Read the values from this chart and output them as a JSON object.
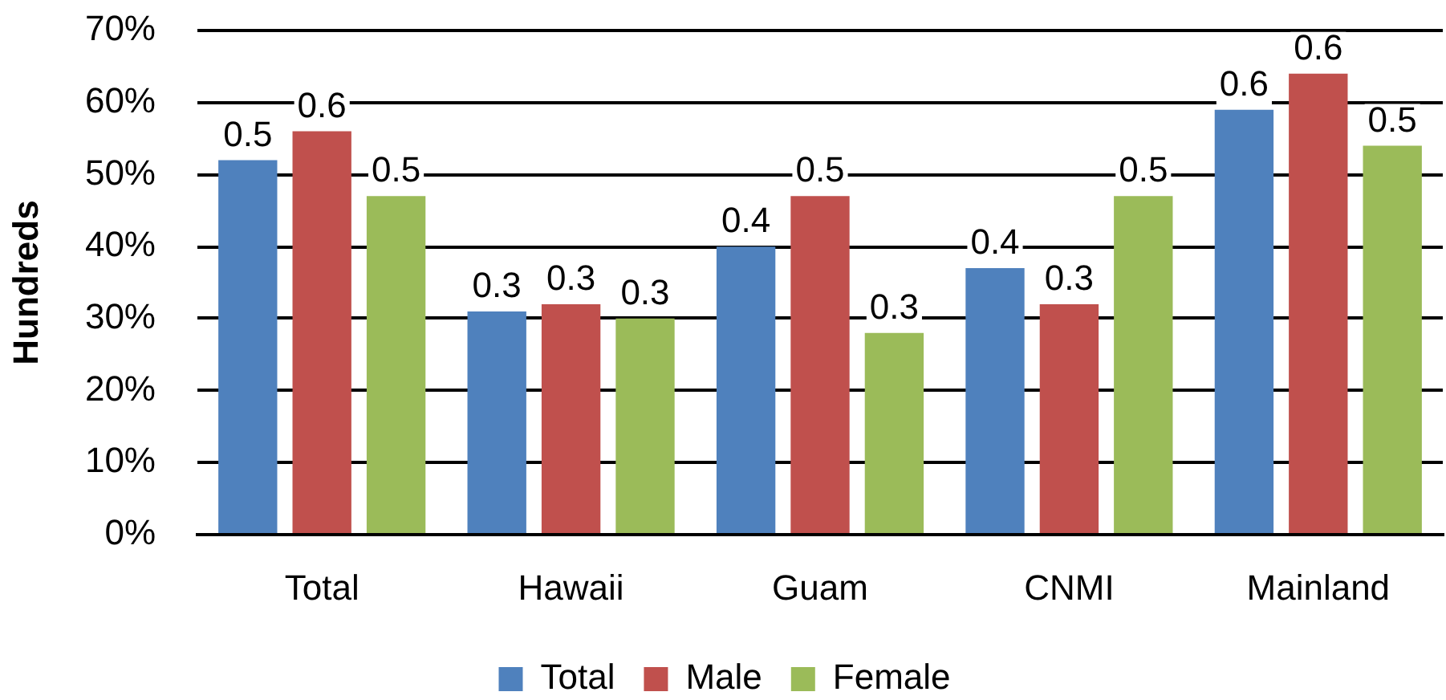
{
  "chart_data": {
    "type": "bar",
    "ylabel": "Hundreds",
    "categories": [
      "Total",
      "Hawaii",
      "Guam",
      "CNMI",
      "Mainland"
    ],
    "series": [
      {
        "name": "Total",
        "color": "#4f81bd",
        "values": [
          0.52,
          0.31,
          0.4,
          0.37,
          0.59
        ],
        "value_labels": [
          "0.5",
          "0.3",
          "0.4",
          "0.4",
          "0.6"
        ]
      },
      {
        "name": "Male",
        "color": "#c0504d",
        "values": [
          0.56,
          0.32,
          0.47,
          0.32,
          0.64
        ],
        "value_labels": [
          "0.6",
          "0.3",
          "0.5",
          "0.3",
          "0.6"
        ]
      },
      {
        "name": "Female",
        "color": "#9bbb59",
        "values": [
          0.47,
          0.3,
          0.28,
          0.47,
          0.54
        ],
        "value_labels": [
          "0.5",
          "0.3",
          "0.3",
          "0.5",
          "0.5"
        ]
      }
    ],
    "ylim": [
      0,
      0.7
    ],
    "yticks": [
      {
        "value": 0,
        "label": "0%"
      },
      {
        "value": 0.1,
        "label": "10%"
      },
      {
        "value": 0.2,
        "label": "20%"
      },
      {
        "value": 0.3,
        "label": "30%"
      },
      {
        "value": 0.4,
        "label": "40%"
      },
      {
        "value": 0.5,
        "label": "50%"
      },
      {
        "value": 0.6,
        "label": "60%"
      },
      {
        "value": 0.7,
        "label": "70%"
      }
    ],
    "grid": "y",
    "legend": "bottom"
  }
}
